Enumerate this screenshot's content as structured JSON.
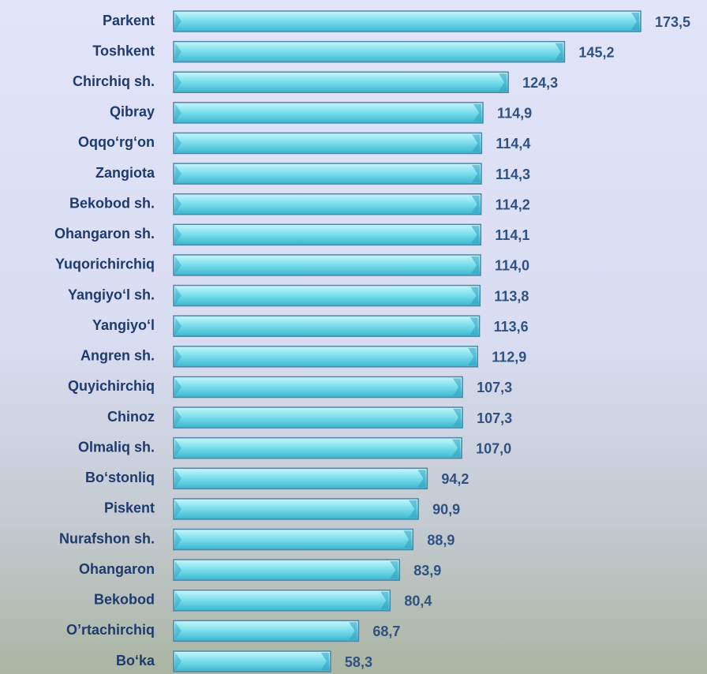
{
  "chart_data": {
    "type": "bar",
    "orientation": "horizontal",
    "categories": [
      "Parkent",
      "Toshkent",
      "Chirchiq sh.",
      "Qibray",
      "Oqqo‘rg‘on",
      "Zangiota",
      "Bekobod sh.",
      "Ohangaron sh.",
      "Yuqorichirchiq",
      "Yangiyo‘l sh.",
      "Yangiyo‘l",
      "Angren sh.",
      "Quyichirchiq",
      "Chinoz",
      "Olmaliq sh.",
      "Bo‘stonliq",
      "Piskent",
      "Nurafshon sh.",
      "Ohangaron ",
      "Bekobod",
      "O’rtachirchiq",
      "Bo‘ka"
    ],
    "values": [
      173.5,
      145.2,
      124.3,
      114.9,
      114.4,
      114.3,
      114.2,
      114.1,
      114.0,
      113.8,
      113.6,
      112.9,
      107.3,
      107.3,
      107.0,
      94.2,
      90.9,
      88.9,
      83.9,
      80.4,
      68.7,
      58.3
    ],
    "value_labels": [
      "173,5",
      "145,2",
      "124,3",
      "114,9",
      "114,4",
      "114,3",
      "114,2",
      "114,1",
      "114,0",
      "113,8",
      "113,6",
      "112,9",
      "107,3",
      "107,3",
      "107,0",
      "94,2",
      "90,9",
      "88,9",
      "83,9",
      "80,4",
      "68,7",
      "58,3"
    ],
    "color": "#5fd3e6"
  }
}
